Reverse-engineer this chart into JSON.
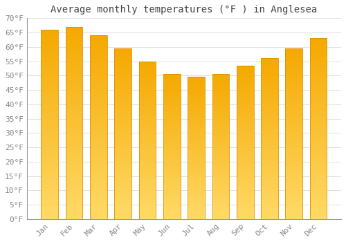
{
  "title": "Average monthly temperatures (°F ) in Anglesea",
  "months": [
    "Jan",
    "Feb",
    "Mar",
    "Apr",
    "May",
    "Jun",
    "Jul",
    "Aug",
    "Sep",
    "Oct",
    "Nov",
    "Dec"
  ],
  "values": [
    66,
    67,
    64,
    59.5,
    55,
    50.5,
    49.5,
    50.5,
    53.5,
    56,
    59.5,
    63
  ],
  "bar_color_top": "#F5A800",
  "bar_color_bottom": "#FFD966",
  "bar_edge_color": "#E09000",
  "background_color": "#ffffff",
  "grid_color": "#e0e0e0",
  "tick_color": "#888888",
  "title_color": "#444444",
  "ylim": [
    0,
    70
  ],
  "yticks": [
    0,
    5,
    10,
    15,
    20,
    25,
    30,
    35,
    40,
    45,
    50,
    55,
    60,
    65,
    70
  ],
  "tick_label_suffix": "°F",
  "title_fontsize": 10,
  "tick_fontsize": 8,
  "font_family": "monospace",
  "bar_width": 0.7,
  "gradient_steps": 100
}
